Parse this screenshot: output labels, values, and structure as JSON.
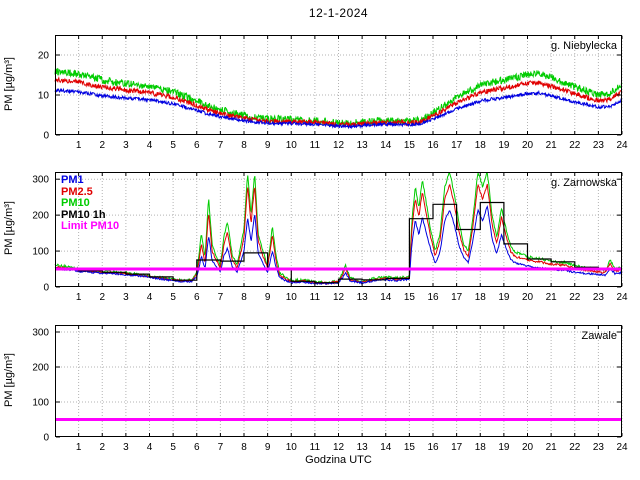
{
  "title": "12-1-2024",
  "xlabel": "Godzina UTC",
  "ylabel": "PM [µg/m³]",
  "colors": {
    "pm1": "#0000e0",
    "pm25": "#e00000",
    "pm10": "#00cc00",
    "pm10_1h": "#000000",
    "limit": "#ff00ff",
    "grid": "#b3b3b3",
    "axis": "#000000"
  },
  "x_axis": {
    "min": 0,
    "max": 24,
    "ticks": [
      1,
      2,
      3,
      4,
      5,
      6,
      7,
      8,
      9,
      10,
      11,
      12,
      13,
      14,
      15,
      16,
      17,
      18,
      19,
      20,
      21,
      22,
      23,
      24
    ]
  },
  "chart_data": [
    {
      "name": "g. Niebylecka",
      "type": "line",
      "ylim": [
        0,
        25
      ],
      "yticks": [
        0,
        10,
        20
      ],
      "limit": null,
      "x": [
        0,
        0.5,
        1,
        1.5,
        2,
        2.5,
        3,
        3.5,
        4,
        4.5,
        5,
        5.5,
        6,
        6.5,
        7,
        7.5,
        8,
        8.5,
        9,
        9.5,
        10,
        10.5,
        11,
        11.5,
        12,
        12.5,
        13,
        13.5,
        14,
        14.5,
        15,
        15.5,
        16,
        16.5,
        17,
        17.5,
        18,
        18.5,
        19,
        19.5,
        20,
        20.5,
        21,
        21.5,
        22,
        22.5,
        23,
        23.5,
        24
      ],
      "series": [
        {
          "name": "PM10",
          "color": "pm10",
          "noise": 0.9,
          "width": 1,
          "values": [
            16.0,
            15.6,
            15.2,
            14.5,
            13.8,
            13.3,
            12.9,
            12.5,
            12.2,
            11.5,
            10.8,
            9.7,
            8.5,
            7.2,
            6.3,
            5.5,
            4.9,
            4.4,
            4.1,
            4.0,
            3.9,
            3.8,
            3.6,
            3.3,
            3.0,
            2.9,
            3.3,
            3.5,
            3.6,
            3.6,
            3.5,
            3.8,
            5.6,
            7.4,
            9.4,
            10.9,
            12.4,
            13.2,
            13.7,
            14.4,
            15.1,
            15.3,
            14.4,
            13.2,
            12.1,
            11.0,
            10.1,
            10.4,
            12.8
          ]
        },
        {
          "name": "PM2.5",
          "color": "pm25",
          "noise": 0.6,
          "width": 1,
          "values": [
            13.8,
            13.5,
            13.2,
            12.6,
            12.0,
            11.6,
            11.2,
            10.9,
            10.6,
            10.0,
            9.4,
            8.4,
            7.4,
            6.2,
            5.4,
            4.7,
            4.2,
            3.8,
            3.5,
            3.4,
            3.4,
            3.3,
            3.1,
            2.9,
            2.6,
            2.5,
            2.8,
            3.0,
            3.1,
            3.1,
            3.0,
            3.3,
            4.8,
            6.3,
            8.0,
            9.3,
            10.6,
            11.3,
            11.7,
            12.3,
            12.9,
            13.1,
            12.3,
            11.3,
            10.3,
            9.4,
            8.6,
            8.9,
            10.9
          ]
        },
        {
          "name": "PM1",
          "color": "pm1",
          "noise": 0.4,
          "width": 1,
          "values": [
            11.2,
            11.0,
            10.8,
            10.3,
            9.8,
            9.5,
            9.2,
            9.0,
            8.8,
            8.3,
            7.8,
            7.0,
            6.2,
            5.2,
            4.6,
            4.0,
            3.6,
            3.2,
            3.0,
            2.9,
            2.9,
            2.8,
            2.7,
            2.5,
            2.2,
            2.1,
            2.4,
            2.6,
            2.7,
            2.7,
            2.6,
            2.8,
            4.0,
            5.2,
            6.5,
            7.5,
            8.5,
            9.0,
            9.3,
            9.8,
            10.3,
            10.5,
            9.8,
            9.0,
            8.3,
            7.6,
            7.0,
            7.2,
            8.8
          ]
        }
      ]
    },
    {
      "name": "g. Zarnowska",
      "type": "line",
      "ylim": [
        0,
        320
      ],
      "yticks": [
        0,
        100,
        200,
        300
      ],
      "limit": 50,
      "legend": [
        {
          "label": "PM1",
          "color": "pm1"
        },
        {
          "label": "PM2.5",
          "color": "pm25"
        },
        {
          "label": "PM10",
          "color": "pm10"
        },
        {
          "label": "PM10 1h",
          "color": "pm10_1h"
        },
        {
          "label": "Limit PM10",
          "color": "limit"
        }
      ],
      "x": [
        0,
        0.5,
        1,
        1.5,
        2,
        2.5,
        3,
        3.5,
        4,
        4.5,
        5,
        5.4,
        5.8,
        6,
        6.2,
        6.35,
        6.5,
        6.65,
        6.8,
        7,
        7.15,
        7.3,
        7.5,
        7.7,
        7.85,
        8,
        8.15,
        8.3,
        8.45,
        8.6,
        8.8,
        9,
        9.2,
        9.35,
        9.5,
        9.8,
        10,
        10.5,
        11,
        11.5,
        12,
        12.3,
        12.5,
        13,
        13.5,
        14,
        14.5,
        15,
        15.1,
        15.25,
        15.4,
        15.55,
        15.7,
        15.9,
        16.1,
        16.3,
        16.5,
        16.7,
        16.9,
        17.1,
        17.3,
        17.5,
        17.7,
        17.9,
        18.1,
        18.3,
        18.5,
        18.7,
        18.9,
        19.1,
        19.3,
        19.5,
        19.8,
        20,
        20.3,
        20.6,
        21,
        21.3,
        21.6,
        22,
        22.3,
        22.6,
        23,
        23.3,
        23.5,
        23.7,
        24
      ],
      "series": [
        {
          "name": "PM10",
          "color": "pm10",
          "noise": 3.5,
          "width": 1,
          "values": [
            62,
            56,
            50,
            46,
            44,
            42,
            39,
            36,
            31,
            26,
            22,
            18,
            20,
            40,
            150,
            80,
            250,
            120,
            90,
            60,
            140,
            180,
            90,
            60,
            110,
            160,
            320,
            200,
            320,
            150,
            100,
            60,
            170,
            90,
            40,
            25,
            18,
            20,
            14,
            12,
            16,
            60,
            25,
            16,
            24,
            28,
            25,
            30,
            180,
            280,
            220,
            300,
            240,
            160,
            100,
            150,
            280,
            320,
            260,
            180,
            120,
            100,
            200,
            320,
            280,
            320,
            200,
            140,
            220,
            160,
            110,
            95,
            90,
            85,
            80,
            78,
            72,
            70,
            68,
            60,
            55,
            52,
            48,
            45,
            75,
            50,
            55
          ]
        },
        {
          "name": "PM2.5",
          "color": "pm25",
          "noise": 3,
          "width": 1,
          "values": [
            56,
            51,
            46,
            43,
            41,
            39,
            36,
            33,
            29,
            24,
            20,
            17,
            18,
            34,
            120,
            65,
            210,
            100,
            78,
            52,
            118,
            152,
            76,
            52,
            92,
            135,
            285,
            175,
            285,
            130,
            86,
            52,
            145,
            76,
            34,
            21,
            15,
            17,
            12,
            11,
            14,
            50,
            21,
            14,
            20,
            24,
            21,
            26,
            155,
            245,
            195,
            265,
            210,
            140,
            86,
            130,
            245,
            285,
            230,
            155,
            104,
            86,
            175,
            285,
            245,
            285,
            175,
            120,
            195,
            140,
            96,
            84,
            80,
            76,
            71,
            69,
            64,
            62,
            60,
            53,
            49,
            46,
            42,
            40,
            66,
            44,
            49
          ]
        },
        {
          "name": "PM1",
          "color": "pm1",
          "noise": 2.5,
          "width": 1,
          "values": [
            53,
            48,
            44,
            41,
            39,
            37,
            34,
            31,
            27,
            22,
            18,
            15,
            16,
            28,
            85,
            50,
            145,
            75,
            58,
            42,
            88,
            108,
            58,
            40,
            68,
            98,
            195,
            125,
            205,
            95,
            65,
            40,
            100,
            58,
            27,
            17,
            12,
            14,
            10,
            9,
            12,
            38,
            17,
            12,
            17,
            20,
            18,
            22,
            115,
            185,
            145,
            195,
            155,
            105,
            65,
            98,
            185,
            215,
            175,
            115,
            82,
            68,
            135,
            215,
            185,
            225,
            135,
            92,
            145,
            105,
            76,
            66,
            62,
            58,
            55,
            53,
            50,
            48,
            46,
            41,
            39,
            37,
            35,
            33,
            51,
            37,
            40
          ]
        },
        {
          "name": "PM10 1h",
          "color": "pm10_1h",
          "step": true,
          "width": 1.2,
          "hourly": [
            52,
            45,
            41,
            36,
            28,
            19,
            75,
            72,
            95,
            52,
            16,
            12,
            22,
            20,
            24,
            190,
            230,
            160,
            235,
            120,
            78,
            70,
            55,
            50
          ]
        }
      ]
    },
    {
      "name": "Zawale",
      "type": "line",
      "ylim": [
        0,
        320
      ],
      "yticks": [
        0,
        100,
        200,
        300
      ],
      "limit": 50,
      "x": [],
      "series": []
    }
  ]
}
